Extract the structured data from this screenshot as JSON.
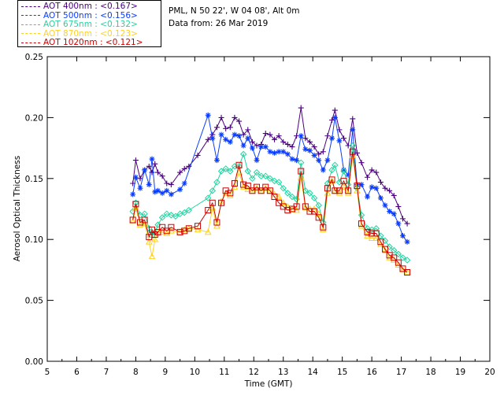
{
  "info": {
    "site": "PML, N 50 22', W 04 08', Alt 0m",
    "date": "Data from: 26 Mar 2019"
  },
  "legend": [
    {
      "label": "AOT  400nm : <0.167>",
      "color": "#4b0082"
    },
    {
      "label": "AOT  500nm : <0.156>",
      "color": "#0a3cff"
    },
    {
      "label": "AOT  675nm : <0.132>",
      "color": "#1fd5a0"
    },
    {
      "label": "AOT  870nm : <0.123>",
      "color": "#ffd21e"
    },
    {
      "label": "AOT 1020nm : <0.121>",
      "color": "#cc0000"
    }
  ],
  "chart_data": {
    "type": "scatter",
    "title": "",
    "xlabel": "Time (GMT)",
    "ylabel": "Aerosol Optical Thickness",
    "xlim": [
      5,
      20
    ],
    "ylim": [
      0.0,
      0.25
    ],
    "xticks": [
      "5",
      "6",
      "7",
      "8",
      "9",
      "10",
      "11",
      "12",
      "13",
      "14",
      "15",
      "16",
      "17",
      "18",
      "19",
      "20"
    ],
    "yticks": [
      "0.00",
      "0.05",
      "0.10",
      "0.15",
      "0.20",
      "0.25"
    ],
    "grid": false,
    "series": [
      {
        "name": "AOT  400nm : <0.167>",
        "color": "#4b0082",
        "marker": "plus",
        "x": [
          7.9,
          8.0,
          8.15,
          8.3,
          8.45,
          8.55,
          8.65,
          8.75,
          8.9,
          9.05,
          9.2,
          9.5,
          9.65,
          9.8,
          10.1,
          10.45,
          10.6,
          10.75,
          10.9,
          11.05,
          11.2,
          11.35,
          11.5,
          11.65,
          11.8,
          11.95,
          12.1,
          12.25,
          12.4,
          12.55,
          12.7,
          12.85,
          13.0,
          13.15,
          13.3,
          13.45,
          13.6,
          13.75,
          13.9,
          14.05,
          14.2,
          14.35,
          14.5,
          14.65,
          14.75,
          14.9,
          15.05,
          15.2,
          15.35,
          15.5,
          15.65,
          15.85,
          16.0,
          16.15,
          16.3,
          16.45,
          16.6,
          16.75,
          16.9,
          17.05,
          17.2
        ],
        "y": [
          0.146,
          0.165,
          0.15,
          0.157,
          0.16,
          0.155,
          0.162,
          0.155,
          0.152,
          0.146,
          0.145,
          0.155,
          0.158,
          0.16,
          0.169,
          0.182,
          0.186,
          0.192,
          0.2,
          0.191,
          0.192,
          0.2,
          0.197,
          0.186,
          0.19,
          0.18,
          0.177,
          0.178,
          0.187,
          0.186,
          0.182,
          0.185,
          0.18,
          0.178,
          0.176,
          0.185,
          0.208,
          0.183,
          0.18,
          0.176,
          0.17,
          0.172,
          0.185,
          0.198,
          0.206,
          0.19,
          0.183,
          0.177,
          0.199,
          0.171,
          0.163,
          0.151,
          0.157,
          0.155,
          0.147,
          0.142,
          0.14,
          0.136,
          0.127,
          0.117,
          0.113
        ]
      },
      {
        "name": "AOT  500nm : <0.156>",
        "color": "#0a3cff",
        "marker": "asterisk",
        "x": [
          7.9,
          8.0,
          8.15,
          8.3,
          8.45,
          8.55,
          8.65,
          8.75,
          8.9,
          9.05,
          9.2,
          9.5,
          9.65,
          10.45,
          10.6,
          10.75,
          10.9,
          11.05,
          11.2,
          11.35,
          11.5,
          11.65,
          11.8,
          11.95,
          12.1,
          12.25,
          12.4,
          12.55,
          12.7,
          12.85,
          13.0,
          13.15,
          13.3,
          13.45,
          13.6,
          13.75,
          13.9,
          14.05,
          14.2,
          14.35,
          14.5,
          14.65,
          14.75,
          14.9,
          15.05,
          15.2,
          15.35,
          15.5,
          15.65,
          15.85,
          16.0,
          16.15,
          16.3,
          16.45,
          16.6,
          16.75,
          16.9,
          17.05,
          17.2
        ],
        "y": [
          0.137,
          0.151,
          0.142,
          0.157,
          0.145,
          0.166,
          0.139,
          0.14,
          0.138,
          0.14,
          0.137,
          0.141,
          0.146,
          0.202,
          0.183,
          0.165,
          0.186,
          0.182,
          0.18,
          0.186,
          0.185,
          0.177,
          0.183,
          0.175,
          0.165,
          0.176,
          0.176,
          0.172,
          0.171,
          0.172,
          0.172,
          0.17,
          0.166,
          0.165,
          0.185,
          0.174,
          0.173,
          0.169,
          0.165,
          0.157,
          0.165,
          0.183,
          0.2,
          0.181,
          0.157,
          0.153,
          0.19,
          0.145,
          0.145,
          0.135,
          0.143,
          0.142,
          0.134,
          0.128,
          0.123,
          0.121,
          0.113,
          0.103,
          0.098
        ]
      },
      {
        "name": "AOT  675nm : <0.132>",
        "color": "#1fd5a0",
        "marker": "diamond",
        "x": [
          7.9,
          8.0,
          8.15,
          8.3,
          8.45,
          8.55,
          8.65,
          8.75,
          8.9,
          9.05,
          9.2,
          9.35,
          9.5,
          9.65,
          9.8,
          10.45,
          10.6,
          10.75,
          10.9,
          11.05,
          11.2,
          11.35,
          11.5,
          11.65,
          11.8,
          11.95,
          12.1,
          12.25,
          12.4,
          12.55,
          12.7,
          12.85,
          13.0,
          13.15,
          13.3,
          13.45,
          13.6,
          13.75,
          13.9,
          14.05,
          14.2,
          14.35,
          14.5,
          14.65,
          14.75,
          14.9,
          15.05,
          15.2,
          15.35,
          15.5,
          15.65,
          15.85,
          16.0,
          16.15,
          16.3,
          16.45,
          16.6,
          16.75,
          16.9,
          17.05,
          17.2
        ],
        "y": [
          0.123,
          0.13,
          0.12,
          0.121,
          0.109,
          0.103,
          0.106,
          0.112,
          0.118,
          0.121,
          0.12,
          0.119,
          0.121,
          0.122,
          0.124,
          0.134,
          0.14,
          0.147,
          0.156,
          0.158,
          0.156,
          0.16,
          0.16,
          0.17,
          0.156,
          0.15,
          0.155,
          0.152,
          0.152,
          0.15,
          0.148,
          0.147,
          0.142,
          0.138,
          0.135,
          0.133,
          0.163,
          0.14,
          0.138,
          0.134,
          0.128,
          0.114,
          0.146,
          0.157,
          0.161,
          0.147,
          0.156,
          0.145,
          0.177,
          0.142,
          0.12,
          0.109,
          0.108,
          0.109,
          0.103,
          0.099,
          0.094,
          0.091,
          0.088,
          0.085,
          0.083
        ]
      },
      {
        "name": "AOT  870nm : <0.123>",
        "color": "#ffd21e",
        "marker": "triangle",
        "x": [
          7.9,
          8.0,
          8.15,
          8.3,
          8.45,
          8.55,
          8.65,
          8.75,
          8.9,
          9.05,
          9.2,
          9.5,
          9.65,
          9.8,
          10.1,
          10.45,
          10.6,
          10.75,
          10.9,
          11.05,
          11.2,
          11.35,
          11.5,
          11.65,
          11.8,
          11.95,
          12.1,
          12.25,
          12.4,
          12.55,
          12.7,
          12.85,
          13.0,
          13.15,
          13.3,
          13.45,
          13.6,
          13.75,
          13.9,
          14.05,
          14.2,
          14.35,
          14.5,
          14.65,
          14.75,
          14.9,
          15.05,
          15.2,
          15.35,
          15.5,
          15.65,
          15.85,
          16.0,
          16.15,
          16.3,
          16.45,
          16.6,
          16.75,
          16.9,
          17.05,
          17.2
        ],
        "y": [
          0.115,
          0.126,
          0.112,
          0.113,
          0.098,
          0.086,
          0.1,
          0.106,
          0.106,
          0.105,
          0.107,
          0.106,
          0.108,
          0.109,
          0.108,
          0.106,
          0.126,
          0.111,
          0.131,
          0.138,
          0.136,
          0.143,
          0.155,
          0.143,
          0.141,
          0.14,
          0.142,
          0.14,
          0.142,
          0.14,
          0.137,
          0.135,
          0.13,
          0.127,
          0.125,
          0.124,
          0.151,
          0.126,
          0.125,
          0.125,
          0.121,
          0.108,
          0.138,
          0.148,
          0.14,
          0.138,
          0.143,
          0.138,
          0.169,
          0.14,
          0.111,
          0.103,
          0.101,
          0.101,
          0.096,
          0.091,
          0.085,
          0.083,
          0.079,
          0.075,
          0.073
        ]
      },
      {
        "name": "AOT 1020nm : <0.121>",
        "color": "#cc0000",
        "marker": "square",
        "x": [
          7.9,
          8.0,
          8.15,
          8.3,
          8.45,
          8.55,
          8.65,
          8.75,
          8.9,
          9.05,
          9.2,
          9.5,
          9.65,
          9.8,
          10.1,
          10.45,
          10.6,
          10.75,
          10.9,
          11.05,
          11.2,
          11.35,
          11.5,
          11.65,
          11.8,
          11.95,
          12.1,
          12.25,
          12.4,
          12.55,
          12.7,
          12.85,
          13.0,
          13.15,
          13.3,
          13.45,
          13.6,
          13.75,
          13.9,
          14.05,
          14.2,
          14.35,
          14.5,
          14.65,
          14.75,
          14.9,
          15.05,
          15.2,
          15.35,
          15.5,
          15.65,
          15.85,
          16.0,
          16.15,
          16.3,
          16.45,
          16.6,
          16.75,
          16.9,
          17.05,
          17.2
        ],
        "y": [
          0.116,
          0.129,
          0.114,
          0.116,
          0.102,
          0.108,
          0.104,
          0.106,
          0.11,
          0.107,
          0.11,
          0.106,
          0.107,
          0.109,
          0.111,
          0.124,
          0.13,
          0.114,
          0.13,
          0.14,
          0.138,
          0.146,
          0.161,
          0.145,
          0.144,
          0.14,
          0.143,
          0.14,
          0.143,
          0.14,
          0.135,
          0.13,
          0.127,
          0.124,
          0.125,
          0.127,
          0.156,
          0.127,
          0.123,
          0.123,
          0.118,
          0.11,
          0.142,
          0.149,
          0.14,
          0.14,
          0.148,
          0.14,
          0.172,
          0.144,
          0.113,
          0.106,
          0.105,
          0.105,
          0.098,
          0.092,
          0.087,
          0.085,
          0.081,
          0.076,
          0.073
        ]
      }
    ]
  }
}
